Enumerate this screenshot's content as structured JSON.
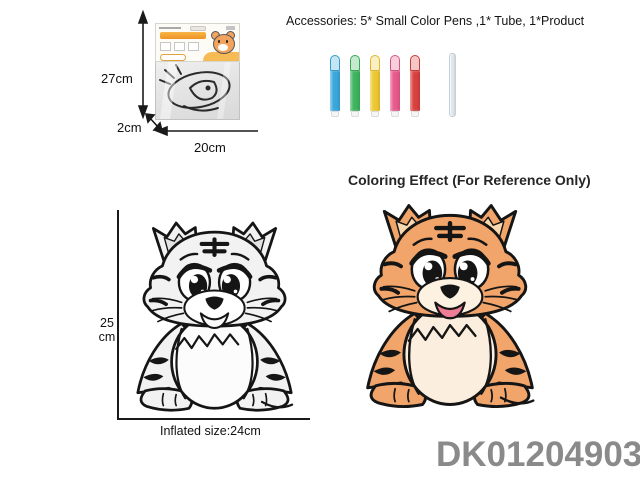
{
  "accessories": {
    "label": "Accessories: 5* Small Color Pens ,1* Tube, 1*Product",
    "pens": [
      {
        "name": "blue-pen",
        "color": "#3aa7db"
      },
      {
        "name": "green-pen",
        "color": "#3eb45f"
      },
      {
        "name": "yellow-pen",
        "color": "#eec832"
      },
      {
        "name": "pink-pen",
        "color": "#e85a8c"
      },
      {
        "name": "red-pen",
        "color": "#d9413f"
      }
    ],
    "tube_color": "#dfe7ec"
  },
  "package": {
    "height_label": "27cm",
    "depth_label": "2cm",
    "width_label": "20cm"
  },
  "inflated": {
    "height_value": "25",
    "height_unit": "cm",
    "size_label": "Inflated size:24cm"
  },
  "coloring_effect_label": "Coloring Effect (For Reference Only)",
  "product_code": "DK01204903",
  "tigers": {
    "uncolored": {
      "colors": {
        "fur": "#f2f2f2",
        "ear": "#e3e3e3",
        "belly": "#fcfcfc",
        "muzzle": "#ffffff",
        "mouth": "#fafafa"
      }
    },
    "colored": {
      "colors": {
        "fur": "#f2a56b",
        "ear": "#fbd9ae",
        "belly": "#fceede",
        "muzzle": "#fdf2e2",
        "mouth": "#ee7d95"
      }
    }
  }
}
